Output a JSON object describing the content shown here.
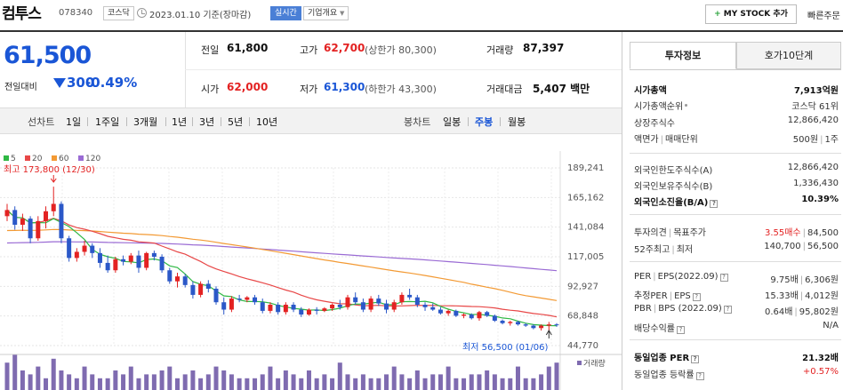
{
  "header": {
    "stock_name": "컴투스",
    "stock_code": "078340",
    "market_badge": "코스닥",
    "as_of": "2023.01.10 기준(장마감)",
    "realtime_badge": "실시간",
    "company_overview": "기업개요",
    "my_stock_label": "MY STOCK 추가",
    "quick_order": "빠른주문"
  },
  "price": {
    "current": "61,500",
    "change_label": "전일대비",
    "change": "300",
    "change_pct": "-0.49%"
  },
  "summary": {
    "prev_close_label": "전일",
    "prev_close": "61,800",
    "high_label": "고가",
    "high": "62,700",
    "upper_limit": "(상한가 80,300)",
    "volume_label": "거래량",
    "volume": "87,397",
    "open_label": "시가",
    "open": "62,000",
    "low_label": "저가",
    "low": "61,300",
    "lower_limit": "(하한가 43,300)",
    "trade_value_label": "거래대금",
    "trade_value": "5,407 백만"
  },
  "period_bar": {
    "line_chart_label": "선차트",
    "line_tabs": [
      "1일",
      "1주일",
      "3개월",
      "1년",
      "3년",
      "5년",
      "10년"
    ],
    "candle_label": "봉차트",
    "candle_tabs": [
      "일봉",
      "주봉",
      "월봉"
    ],
    "selected_candle": "주봉"
  },
  "chart_data": {
    "type": "candlestick",
    "ma_legend": [
      {
        "name": "5",
        "color": "#2fb844"
      },
      {
        "name": "20",
        "color": "#e84848"
      },
      {
        "name": "60",
        "color": "#f39a34"
      },
      {
        "name": "120",
        "color": "#9a6bd4"
      }
    ],
    "y_ticks": [
      189241,
      165162,
      141084,
      117005,
      92927,
      68848,
      44770
    ],
    "y_tick_labels": [
      "189,241",
      "165,162",
      "141,084",
      "117,005",
      "92,927",
      "68,848",
      "44,770"
    ],
    "ylim": [
      44770,
      189241
    ],
    "high_annotation": "최고 173,800 (12/30)",
    "low_annotation": "최저 56,500 (01/06)",
    "volume_label": "거래량",
    "up_color": "#e32222",
    "down_color": "#2b58c8",
    "candles": [
      [
        150000,
        160000,
        146000,
        155000
      ],
      [
        155000,
        158000,
        139000,
        143000
      ],
      [
        143000,
        152000,
        138000,
        148000
      ],
      [
        148000,
        150000,
        128000,
        132000
      ],
      [
        132000,
        150000,
        130000,
        146000
      ],
      [
        146000,
        158000,
        140000,
        154000
      ],
      [
        154000,
        174000,
        150000,
        160000
      ],
      [
        160000,
        162000,
        128000,
        132000
      ],
      [
        132000,
        134000,
        113000,
        116000
      ],
      [
        116000,
        124000,
        113000,
        121000
      ],
      [
        121000,
        130000,
        118000,
        126000
      ],
      [
        126000,
        128000,
        116000,
        120000
      ],
      [
        120000,
        124000,
        108000,
        112000
      ],
      [
        112000,
        118000,
        104000,
        106000
      ],
      [
        106000,
        117000,
        104000,
        115000
      ],
      [
        115000,
        118000,
        110000,
        113000
      ],
      [
        113000,
        120000,
        111000,
        118000
      ],
      [
        118000,
        122000,
        104000,
        108000
      ],
      [
        108000,
        121000,
        106000,
        120000
      ],
      [
        120000,
        122000,
        114000,
        117000
      ],
      [
        117000,
        119000,
        104000,
        106000
      ],
      [
        106000,
        108000,
        95000,
        97000
      ],
      [
        97000,
        104000,
        92000,
        101000
      ],
      [
        101000,
        103000,
        92000,
        94000
      ],
      [
        94000,
        97000,
        83000,
        86000
      ],
      [
        86000,
        97000,
        84000,
        95000
      ],
      [
        95000,
        98000,
        88000,
        91000
      ],
      [
        91000,
        93000,
        78000,
        80000
      ],
      [
        80000,
        84000,
        70000,
        74000
      ],
      [
        74000,
        85000,
        72000,
        83000
      ],
      [
        83000,
        86000,
        80000,
        82000
      ],
      [
        82000,
        85000,
        80000,
        84000
      ],
      [
        84000,
        86000,
        78000,
        80000
      ],
      [
        80000,
        83000,
        71000,
        73000
      ],
      [
        73000,
        80000,
        71000,
        78000
      ],
      [
        78000,
        80000,
        70000,
        72000
      ],
      [
        72000,
        80000,
        70000,
        78000
      ],
      [
        78000,
        80000,
        72000,
        74000
      ],
      [
        74000,
        76000,
        68000,
        70000
      ],
      [
        70000,
        75000,
        69000,
        74000
      ],
      [
        74000,
        76000,
        70000,
        73000
      ],
      [
        73000,
        76000,
        72000,
        75000
      ],
      [
        75000,
        79000,
        73000,
        78000
      ],
      [
        78000,
        82000,
        74000,
        76000
      ],
      [
        76000,
        86000,
        74000,
        84000
      ],
      [
        84000,
        88000,
        78000,
        80000
      ],
      [
        80000,
        83000,
        72000,
        74000
      ],
      [
        74000,
        85000,
        72000,
        83000
      ],
      [
        83000,
        86000,
        77000,
        79000
      ],
      [
        79000,
        82000,
        71000,
        74000
      ],
      [
        74000,
        82000,
        72000,
        80000
      ],
      [
        80000,
        88000,
        78000,
        86000
      ],
      [
        86000,
        91000,
        82000,
        84000
      ],
      [
        84000,
        86000,
        76000,
        78000
      ],
      [
        78000,
        80000,
        73000,
        76000
      ],
      [
        76000,
        79000,
        73000,
        74000
      ],
      [
        74000,
        76000,
        70000,
        71000
      ],
      [
        71000,
        74000,
        69000,
        73000
      ],
      [
        73000,
        74000,
        68000,
        69000
      ],
      [
        69000,
        71000,
        67000,
        70000
      ],
      [
        70000,
        71000,
        66000,
        67000
      ],
      [
        67000,
        73000,
        65000,
        72000
      ],
      [
        72000,
        73000,
        68000,
        69000
      ],
      [
        69000,
        70000,
        64000,
        65000
      ],
      [
        65000,
        66000,
        62000,
        63000
      ],
      [
        63000,
        65000,
        61000,
        64000
      ],
      [
        64000,
        65000,
        61000,
        62000
      ],
      [
        62000,
        63000,
        60000,
        61000
      ],
      [
        61000,
        62000,
        58000,
        59000
      ],
      [
        59000,
        62000,
        57000,
        61000
      ],
      [
        61000,
        64000,
        56500,
        62000
      ],
      [
        62000,
        63000,
        60000,
        61500
      ]
    ],
    "volume_bars": [
      7,
      9,
      5,
      4,
      6,
      3,
      8,
      5,
      4,
      3,
      6,
      4,
      3,
      3,
      5,
      4,
      6,
      3,
      4,
      4,
      5,
      6,
      3,
      4,
      5,
      3,
      4,
      6,
      5,
      4,
      3,
      3,
      3,
      4,
      6,
      3,
      5,
      4,
      3,
      5,
      3,
      4,
      3,
      7,
      4,
      3,
      4,
      3,
      3,
      4,
      6,
      4,
      3,
      5,
      3,
      4,
      4,
      6,
      3,
      3,
      4,
      4,
      5,
      4,
      3,
      3,
      6,
      3,
      3,
      4,
      6,
      7
    ]
  },
  "right_panel": {
    "tab_invest": "투자정보",
    "tab_orderbook": "호가10단계",
    "rows": [
      {
        "label": "시가총액",
        "value": "7,913억원",
        "bold": true
      },
      {
        "label": "시가총액순위",
        "value": "코스닥 61위",
        "dot": true
      },
      {
        "label": "상장주식수",
        "value": "12,866,420"
      },
      {
        "label": "액면가",
        "label2": "매매단위",
        "value": "500원",
        "value2": "1주"
      },
      {
        "label": "외국인한도주식수(A)",
        "value": "12,866,420"
      },
      {
        "label": "외국인보유주식수(B)",
        "value": "1,336,430"
      },
      {
        "label": "외국인소진율(B/A)",
        "value": "10.39%",
        "bold": true,
        "icon": "?"
      },
      {
        "label": "투자의견",
        "label2": "목표주가",
        "value": "3.55매수",
        "value2": "84,500",
        "red": true
      },
      {
        "label": "52주최고",
        "label2": "최저",
        "value": "140,700",
        "value2": "56,500"
      },
      {
        "label": "PER",
        "label2": "EPS(2022.09)",
        "value": "9.75배",
        "value2": "6,306원",
        "icon": "?"
      },
      {
        "label": "추정PER",
        "label2": "EPS",
        "value": "15.33배",
        "value2": "4,012원",
        "icon": "?"
      },
      {
        "label": "PBR",
        "label2": "BPS (2022.09)",
        "value": "0.64배",
        "value2": "95,802원",
        "icon": "?"
      },
      {
        "label": "배당수익률",
        "value": "N/A",
        "icon": "?"
      },
      {
        "label": "동일업종 PER",
        "value": "21.32배",
        "bold": true,
        "icon": "?"
      },
      {
        "label": "동일업종 등락률",
        "value": "+0.57%",
        "red": true,
        "icon": "?"
      }
    ]
  }
}
